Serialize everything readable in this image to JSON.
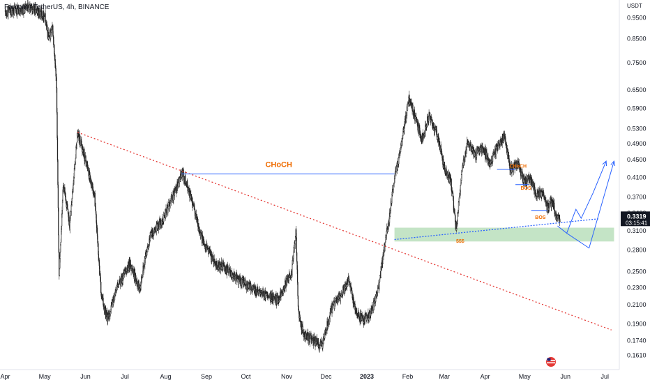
{
  "header": {
    "title": "Fantom / TetherUS, 4h, BINANCE",
    "currency": "USDT"
  },
  "price_tag": {
    "price": "0.3319",
    "countdown": "03:15:41",
    "bg_color": "#131722"
  },
  "colors": {
    "candle": "#222222",
    "trendline": "#e53935",
    "choch_line": "#2962ff",
    "annotation_text": "#ef6c00",
    "demand_zone": "#a5d6a7",
    "projection": "#2962ff"
  },
  "chart_data": {
    "type": "candlestick",
    "title": "Fantom / TetherUS, 4h, BINANCE",
    "y_axis_ticks": [
      "0.9500",
      "0.8500",
      "0.7500",
      "0.6500",
      "0.5900",
      "0.5300",
      "0.4900",
      "0.4500",
      "0.4100",
      "0.3700",
      "0.3400",
      "0.3100",
      "0.2800",
      "0.2500",
      "0.2300",
      "0.2100",
      "0.1900",
      "0.1740",
      "0.1610"
    ],
    "x_axis_ticks": [
      "Apr",
      "May",
      "Jun",
      "Jul",
      "Aug",
      "Sep",
      "Oct",
      "Nov",
      "Dec",
      "2023",
      "Feb",
      "Mar",
      "Apr",
      "May",
      "Jun",
      "Jul"
    ],
    "ylim": [
      0.155,
      1.02
    ],
    "y_scale": "log",
    "last_price": 0.3319,
    "price_path": [
      [
        "2022-04-01",
        0.98
      ],
      [
        "2022-04-20",
        1.0
      ],
      [
        "2022-05-01",
        0.96
      ],
      [
        "2022-05-04",
        0.85
      ],
      [
        "2022-05-07",
        0.9
      ],
      [
        "2022-05-10",
        0.66
      ],
      [
        "2022-05-12",
        0.24
      ],
      [
        "2022-05-15",
        0.4
      ],
      [
        "2022-05-20",
        0.32
      ],
      [
        "2022-05-26",
        0.52
      ],
      [
        "2022-06-02",
        0.44
      ],
      [
        "2022-06-08",
        0.37
      ],
      [
        "2022-06-13",
        0.22
      ],
      [
        "2022-06-18",
        0.195
      ],
      [
        "2022-06-25",
        0.23
      ],
      [
        "2022-07-05",
        0.26
      ],
      [
        "2022-07-12",
        0.23
      ],
      [
        "2022-07-20",
        0.3
      ],
      [
        "2022-07-30",
        0.33
      ],
      [
        "2022-08-08",
        0.38
      ],
      [
        "2022-08-14",
        0.42
      ],
      [
        "2022-08-20",
        0.37
      ],
      [
        "2022-08-28",
        0.3
      ],
      [
        "2022-09-08",
        0.26
      ],
      [
        "2022-09-15",
        0.255
      ],
      [
        "2022-09-25",
        0.24
      ],
      [
        "2022-10-05",
        0.23
      ],
      [
        "2022-10-15",
        0.22
      ],
      [
        "2022-10-25",
        0.215
      ],
      [
        "2022-11-05",
        0.25
      ],
      [
        "2022-11-08",
        0.31
      ],
      [
        "2022-11-10",
        0.2
      ],
      [
        "2022-11-14",
        0.18
      ],
      [
        "2022-11-20",
        0.175
      ],
      [
        "2022-11-28",
        0.17
      ],
      [
        "2022-12-05",
        0.205
      ],
      [
        "2022-12-12",
        0.22
      ],
      [
        "2022-12-18",
        0.24
      ],
      [
        "2022-12-24",
        0.2
      ],
      [
        "2022-12-30",
        0.195
      ],
      [
        "2023-01-04",
        0.2
      ],
      [
        "2023-01-10",
        0.23
      ],
      [
        "2023-01-14",
        0.28
      ],
      [
        "2023-01-18",
        0.33
      ],
      [
        "2023-01-22",
        0.41
      ],
      [
        "2023-01-26",
        0.46
      ],
      [
        "2023-02-02",
        0.62
      ],
      [
        "2023-02-07",
        0.56
      ],
      [
        "2023-02-12",
        0.5
      ],
      [
        "2023-02-17",
        0.57
      ],
      [
        "2023-02-23",
        0.52
      ],
      [
        "2023-03-01",
        0.43
      ],
      [
        "2023-03-06",
        0.4
      ],
      [
        "2023-03-10",
        0.31
      ],
      [
        "2023-03-14",
        0.42
      ],
      [
        "2023-03-19",
        0.5
      ],
      [
        "2023-03-24",
        0.46
      ],
      [
        "2023-03-30",
        0.48
      ],
      [
        "2023-04-05",
        0.44
      ],
      [
        "2023-04-10",
        0.48
      ],
      [
        "2023-04-16",
        0.51
      ],
      [
        "2023-04-20",
        0.43
      ],
      [
        "2023-04-26",
        0.44
      ],
      [
        "2023-05-01",
        0.4
      ],
      [
        "2023-05-05",
        0.41
      ],
      [
        "2023-05-10",
        0.37
      ],
      [
        "2023-05-14",
        0.38
      ],
      [
        "2023-05-18",
        0.35
      ],
      [
        "2023-05-22",
        0.36
      ],
      [
        "2023-05-26",
        0.33
      ],
      [
        "2023-05-28",
        0.3319
      ]
    ],
    "annotations": [
      {
        "label": "CHoCH",
        "date": "2022-10-26",
        "price": 0.433
      },
      {
        "label": "CHoCH",
        "date": "2023-04-26",
        "price": 0.432
      },
      {
        "label": "BOS",
        "date": "2023-05-02",
        "price": 0.385
      },
      {
        "label": "BOS",
        "date": "2023-05-13",
        "price": 0.33
      },
      {
        "label": "$$$",
        "date": "2023-03-13",
        "price": 0.291
      }
    ],
    "choch_level": {
      "price": 0.418,
      "from": "2022-08-13",
      "to": "2023-01-22"
    },
    "choch_level_2": {
      "price": 0.428,
      "from": "2023-04-10",
      "to": "2023-04-24"
    },
    "bos_level_1": {
      "price": 0.395,
      "from": "2023-04-24",
      "to": "2023-05-04"
    },
    "bos_level_2": {
      "price": 0.345,
      "from": "2023-05-06",
      "to": "2023-05-18"
    },
    "trendline": {
      "from": [
        "2022-05-26",
        0.52
      ],
      "to": [
        "2023-07-06",
        0.184
      ]
    },
    "liquidity_line": {
      "from": [
        "2023-01-22",
        0.296
      ],
      "to": [
        "2023-06-26",
        0.33
      ]
    },
    "demand_zone": {
      "from": "2023-01-22",
      "to": "2023-07-08",
      "low": 0.293,
      "high": 0.315
    },
    "projections": [
      [
        [
          "2023-05-26",
          0.318
        ],
        [
          "2023-06-02",
          0.306
        ],
        [
          "2023-06-09",
          0.347
        ],
        [
          "2023-06-13",
          0.331
        ],
        [
          "2023-06-22",
          0.378
        ],
        [
          "2023-07-02",
          0.447
        ]
      ],
      [
        [
          "2023-06-02",
          0.306
        ],
        [
          "2023-06-19",
          0.283
        ],
        [
          "2023-07-08",
          0.447
        ]
      ]
    ]
  }
}
